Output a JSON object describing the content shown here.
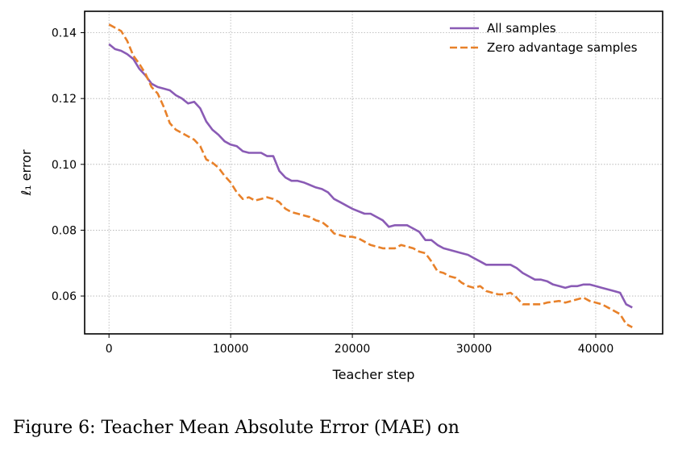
{
  "chart_data": {
    "type": "line",
    "xlabel": "Teacher step",
    "ylabel": "ℓ₁ error",
    "xlim": [
      -2000,
      45500
    ],
    "ylim": [
      0.0485,
      0.1465
    ],
    "xticks": [
      0,
      10000,
      20000,
      30000,
      40000
    ],
    "yticks": [
      0.06,
      0.08,
      0.1,
      0.12,
      0.14
    ],
    "xtick_labels": [
      "0",
      "10000",
      "20000",
      "30000",
      "40000"
    ],
    "ytick_labels": [
      "0.06",
      "0.08",
      "0.10",
      "0.12",
      "0.14"
    ],
    "grid": true,
    "legend_position": "top-right",
    "series": [
      {
        "name": "All samples",
        "color": "#8a5bb5",
        "style": "solid",
        "points": [
          [
            0,
            0.1365
          ],
          [
            500,
            0.135
          ],
          [
            1000,
            0.1345
          ],
          [
            1500,
            0.1335
          ],
          [
            2000,
            0.132
          ],
          [
            2500,
            0.129
          ],
          [
            3000,
            0.127
          ],
          [
            3500,
            0.1245
          ],
          [
            4000,
            0.1235
          ],
          [
            4500,
            0.123
          ],
          [
            5000,
            0.1225
          ],
          [
            5500,
            0.121
          ],
          [
            6000,
            0.12
          ],
          [
            6500,
            0.1185
          ],
          [
            7000,
            0.119
          ],
          [
            7500,
            0.117
          ],
          [
            8000,
            0.113
          ],
          [
            8500,
            0.1105
          ],
          [
            9000,
            0.109
          ],
          [
            9500,
            0.107
          ],
          [
            10000,
            0.106
          ],
          [
            10500,
            0.1055
          ],
          [
            11000,
            0.104
          ],
          [
            11500,
            0.1035
          ],
          [
            12000,
            0.1035
          ],
          [
            12500,
            0.1035
          ],
          [
            13000,
            0.1025
          ],
          [
            13500,
            0.1025
          ],
          [
            14000,
            0.098
          ],
          [
            14500,
            0.096
          ],
          [
            15000,
            0.095
          ],
          [
            15500,
            0.095
          ],
          [
            16000,
            0.0945
          ],
          [
            17000,
            0.093
          ],
          [
            17500,
            0.0925
          ],
          [
            18000,
            0.0915
          ],
          [
            18500,
            0.0895
          ],
          [
            19000,
            0.0885
          ],
          [
            19500,
            0.0875
          ],
          [
            20000,
            0.0865
          ],
          [
            21000,
            0.085
          ],
          [
            21500,
            0.085
          ],
          [
            22000,
            0.084
          ],
          [
            22500,
            0.083
          ],
          [
            23000,
            0.081
          ],
          [
            23500,
            0.0815
          ],
          [
            24000,
            0.0815
          ],
          [
            24500,
            0.0815
          ],
          [
            25000,
            0.0805
          ],
          [
            25500,
            0.0795
          ],
          [
            26000,
            0.077
          ],
          [
            26500,
            0.077
          ],
          [
            27000,
            0.0755
          ],
          [
            27500,
            0.0745
          ],
          [
            28000,
            0.074
          ],
          [
            29000,
            0.073
          ],
          [
            29500,
            0.0725
          ],
          [
            30000,
            0.0715
          ],
          [
            30500,
            0.0705
          ],
          [
            31000,
            0.0695
          ],
          [
            31500,
            0.0695
          ],
          [
            32000,
            0.0695
          ],
          [
            32500,
            0.0695
          ],
          [
            33000,
            0.0695
          ],
          [
            33500,
            0.0685
          ],
          [
            34000,
            0.067
          ],
          [
            34500,
            0.066
          ],
          [
            35000,
            0.065
          ],
          [
            35500,
            0.065
          ],
          [
            36000,
            0.0645
          ],
          [
            36500,
            0.0635
          ],
          [
            37000,
            0.063
          ],
          [
            37500,
            0.0625
          ],
          [
            38000,
            0.063
          ],
          [
            38500,
            0.063
          ],
          [
            39000,
            0.0635
          ],
          [
            39500,
            0.0635
          ],
          [
            40000,
            0.063
          ],
          [
            40500,
            0.0625
          ],
          [
            41000,
            0.062
          ],
          [
            41500,
            0.0615
          ],
          [
            42000,
            0.061
          ],
          [
            42500,
            0.0575
          ],
          [
            43000,
            0.0565
          ]
        ]
      },
      {
        "name": "Zero advantage samples",
        "color": "#e8812a",
        "style": "dashed",
        "points": [
          [
            0,
            0.1425
          ],
          [
            500,
            0.1415
          ],
          [
            1000,
            0.1405
          ],
          [
            1500,
            0.1375
          ],
          [
            2000,
            0.133
          ],
          [
            2500,
            0.1305
          ],
          [
            3000,
            0.1275
          ],
          [
            3500,
            0.1235
          ],
          [
            4000,
            0.1215
          ],
          [
            4500,
            0.1175
          ],
          [
            5000,
            0.1125
          ],
          [
            5500,
            0.1105
          ],
          [
            6000,
            0.1095
          ],
          [
            6500,
            0.1085
          ],
          [
            7000,
            0.1075
          ],
          [
            7500,
            0.1055
          ],
          [
            8000,
            0.1015
          ],
          [
            8500,
            0.1005
          ],
          [
            9000,
            0.099
          ],
          [
            9500,
            0.0965
          ],
          [
            10000,
            0.0945
          ],
          [
            10500,
            0.0915
          ],
          [
            11000,
            0.0895
          ],
          [
            11500,
            0.09
          ],
          [
            12000,
            0.089
          ],
          [
            12500,
            0.0895
          ],
          [
            13000,
            0.09
          ],
          [
            13500,
            0.0895
          ],
          [
            14000,
            0.0885
          ],
          [
            14500,
            0.0865
          ],
          [
            15000,
            0.0855
          ],
          [
            15500,
            0.085
          ],
          [
            16000,
            0.0845
          ],
          [
            16500,
            0.084
          ],
          [
            17000,
            0.083
          ],
          [
            17500,
            0.0825
          ],
          [
            18000,
            0.081
          ],
          [
            18500,
            0.079
          ],
          [
            19000,
            0.0785
          ],
          [
            19500,
            0.078
          ],
          [
            20000,
            0.078
          ],
          [
            20500,
            0.0775
          ],
          [
            21000,
            0.0765
          ],
          [
            21500,
            0.0755
          ],
          [
            22000,
            0.075
          ],
          [
            22500,
            0.0745
          ],
          [
            23000,
            0.0745
          ],
          [
            23500,
            0.0745
          ],
          [
            24000,
            0.0755
          ],
          [
            24500,
            0.075
          ],
          [
            25000,
            0.0745
          ],
          [
            25500,
            0.0735
          ],
          [
            26000,
            0.073
          ],
          [
            26500,
            0.0705
          ],
          [
            27000,
            0.0675
          ],
          [
            27500,
            0.067
          ],
          [
            28000,
            0.066
          ],
          [
            28500,
            0.0655
          ],
          [
            29000,
            0.064
          ],
          [
            29500,
            0.063
          ],
          [
            30000,
            0.0625
          ],
          [
            30500,
            0.063
          ],
          [
            31000,
            0.0615
          ],
          [
            31500,
            0.061
          ],
          [
            32000,
            0.0605
          ],
          [
            32500,
            0.0605
          ],
          [
            33000,
            0.061
          ],
          [
            33500,
            0.0595
          ],
          [
            34000,
            0.0575
          ],
          [
            34500,
            0.0575
          ],
          [
            35000,
            0.0575
          ],
          [
            35500,
            0.0575
          ],
          [
            36000,
            0.058
          ],
          [
            37000,
            0.0585
          ],
          [
            37500,
            0.058
          ],
          [
            38000,
            0.0585
          ],
          [
            38500,
            0.059
          ],
          [
            39000,
            0.0595
          ],
          [
            39500,
            0.0585
          ],
          [
            40000,
            0.058
          ],
          [
            40500,
            0.0575
          ],
          [
            41000,
            0.0565
          ],
          [
            41500,
            0.0555
          ],
          [
            42000,
            0.0545
          ],
          [
            42500,
            0.0515
          ],
          [
            43000,
            0.0505
          ]
        ]
      }
    ]
  },
  "caption": "Figure 6: Teacher Mean Absolute Error (MAE) on"
}
